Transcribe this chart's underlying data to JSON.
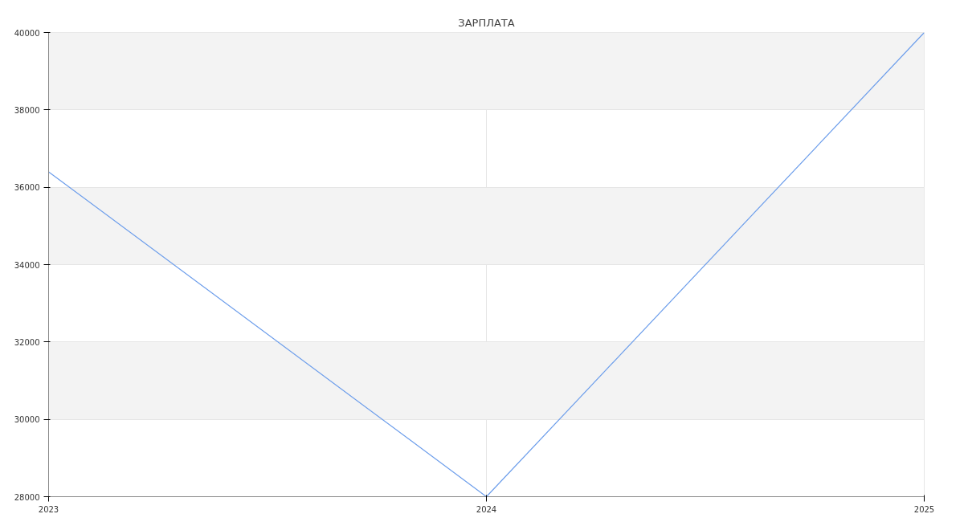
{
  "chart_data": {
    "type": "line",
    "title": "ЗАРПЛАТА",
    "x": [
      2023,
      2024,
      2025
    ],
    "series": [
      {
        "color": "#6d9eeb",
        "values": [
          36400,
          28000,
          40000
        ]
      }
    ],
    "xlim": [
      2023,
      2025
    ],
    "xticks": [
      2023,
      2024,
      2025
    ],
    "ylim": [
      28000,
      40000
    ],
    "yticks": [
      28000,
      30000,
      32000,
      34000,
      36000,
      38000,
      40000
    ],
    "grid": true,
    "marker": "none",
    "line_style": "solid"
  }
}
